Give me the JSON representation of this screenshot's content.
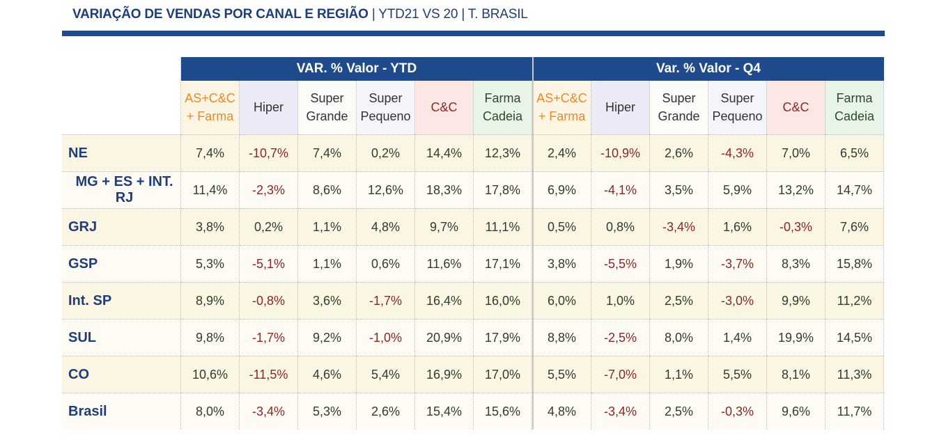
{
  "header": {
    "title_bold": "VARIAÇÃO DE VENDAS POR CANAL E REGIÃO",
    "title_rest": " | YTD21 VS 20 | T. BRASIL"
  },
  "colors": {
    "group_header": "#1f4b8c",
    "region_text": "#1f3d7a",
    "negative": "#8b2626",
    "row_odd": "#fbf6e4",
    "row_even": "#fdfbf4"
  },
  "chart_data": {
    "type": "table",
    "groups": [
      "VAR. % Valor - YTD",
      "Var. % Valor - Q4"
    ],
    "columns": [
      {
        "label": "AS+C&C\n+ Farma",
        "color": "#e88a2c",
        "bg": "#fdf5e4"
      },
      {
        "label": "Hiper",
        "color": "#333333",
        "bg": "#ebebf7"
      },
      {
        "label": "Super\nGrande",
        "color": "#333333",
        "bg": "#fbfbf7"
      },
      {
        "label": "Super\nPequeno",
        "color": "#333333",
        "bg": "#f4f4fb"
      },
      {
        "label": "C&C",
        "color": "#8b2626",
        "bg": "#fbe8e5"
      },
      {
        "label": "Farma\nCadeia",
        "color": "#2b4a2b",
        "bg": "#e9f4e8"
      }
    ],
    "rows": [
      {
        "region": "NE",
        "ytd": [
          "7,4%",
          "-10,7%",
          "7,4%",
          "0,2%",
          "14,4%",
          "12,3%"
        ],
        "q4": [
          "2,4%",
          "-10,9%",
          "2,6%",
          "-4,3%",
          "7,0%",
          "6,5%"
        ]
      },
      {
        "region": "MG + ES + INT. RJ",
        "ytd": [
          "11,4%",
          "-2,3%",
          "8,6%",
          "12,6%",
          "18,3%",
          "17,8%"
        ],
        "q4": [
          "6,9%",
          "-4,1%",
          "3,5%",
          "5,9%",
          "13,2%",
          "14,7%"
        ]
      },
      {
        "region": "GRJ",
        "ytd": [
          "3,8%",
          "0,2%",
          "1,1%",
          "4,8%",
          "9,7%",
          "11,1%"
        ],
        "q4": [
          "0,5%",
          "0,8%",
          "-3,4%",
          "1,6%",
          "-0,3%",
          "7,6%"
        ]
      },
      {
        "region": "GSP",
        "ytd": [
          "5,3%",
          "-5,1%",
          "1,1%",
          "0,6%",
          "11,6%",
          "17,1%"
        ],
        "q4": [
          "3,8%",
          "-5,5%",
          "1,9%",
          "-3,7%",
          "8,3%",
          "15,8%"
        ]
      },
      {
        "region": "Int. SP",
        "ytd": [
          "8,9%",
          "-0,8%",
          "3,6%",
          "-1,7%",
          "16,4%",
          "16,0%"
        ],
        "q4": [
          "6,0%",
          "1,0%",
          "2,5%",
          "-3,0%",
          "9,9%",
          "11,2%"
        ]
      },
      {
        "region": "SUL",
        "ytd": [
          "9,8%",
          "-1,7%",
          "9,2%",
          "-1,0%",
          "20,9%",
          "17,9%"
        ],
        "q4": [
          "8,8%",
          "-2,5%",
          "8,0%",
          "1,4%",
          "19,9%",
          "14,5%"
        ]
      },
      {
        "region": "CO",
        "ytd": [
          "10,6%",
          "-11,5%",
          "4,6%",
          "5,4%",
          "16,9%",
          "17,0%"
        ],
        "q4": [
          "5,5%",
          "-7,0%",
          "1,1%",
          "5,5%",
          "8,1%",
          "11,3%"
        ]
      },
      {
        "region": "Brasil",
        "ytd": [
          "8,0%",
          "-3,4%",
          "5,3%",
          "2,6%",
          "15,4%",
          "15,6%"
        ],
        "q4": [
          "4,8%",
          "-3,4%",
          "2,5%",
          "-0,3%",
          "9,6%",
          "11,7%"
        ]
      }
    ]
  }
}
